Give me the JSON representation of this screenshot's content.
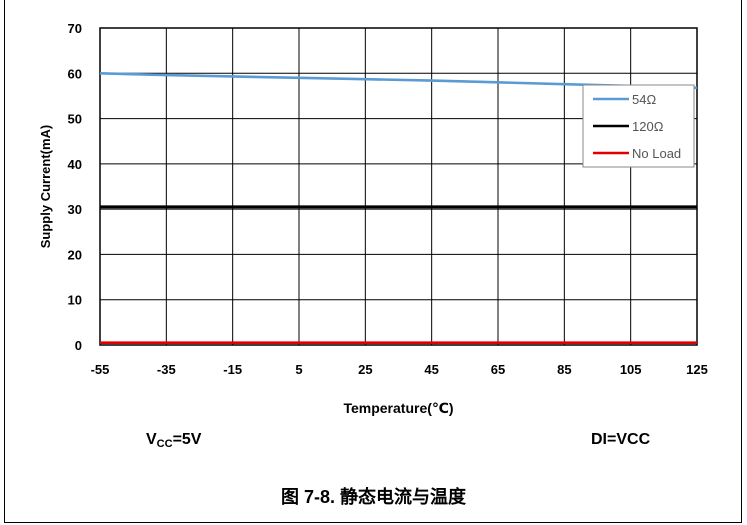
{
  "chart_data": {
    "type": "line",
    "xlabel": "Temperature(℃)",
    "ylabel": "Supply Current(mA)",
    "x": [
      -55,
      -35,
      -15,
      5,
      25,
      45,
      65,
      85,
      105,
      125
    ],
    "x_ticks": [
      "-55",
      "-35",
      "-15",
      "5",
      "25",
      "45",
      "65",
      "85",
      "105",
      "125"
    ],
    "xlim": [
      -55,
      125
    ],
    "ylim": [
      0,
      70
    ],
    "y_ticks": [
      "0",
      "10",
      "20",
      "30",
      "40",
      "50",
      "60",
      "70"
    ],
    "grid": true,
    "legend_position": "right",
    "series": [
      {
        "name": "54Ω",
        "color": "#5b9bd5",
        "values": [
          60.0,
          59.6,
          59.3,
          59.0,
          58.7,
          58.4,
          58.0,
          57.6,
          57.2,
          56.8
        ]
      },
      {
        "name": "120Ω",
        "color": "#000000",
        "values": [
          30.5,
          30.5,
          30.5,
          30.5,
          30.5,
          30.5,
          30.5,
          30.5,
          30.5,
          30.5
        ]
      },
      {
        "name": "No Load",
        "color": "#e00000",
        "values": [
          0.5,
          0.5,
          0.5,
          0.5,
          0.5,
          0.5,
          0.5,
          0.5,
          0.5,
          0.5
        ]
      }
    ]
  },
  "conditions": {
    "vcc_prefix": "V",
    "vcc_sub": "CC",
    "vcc_suffix": "=5V",
    "di": "DI=VCC"
  },
  "caption": "图 7-8. 静态电流与温度"
}
